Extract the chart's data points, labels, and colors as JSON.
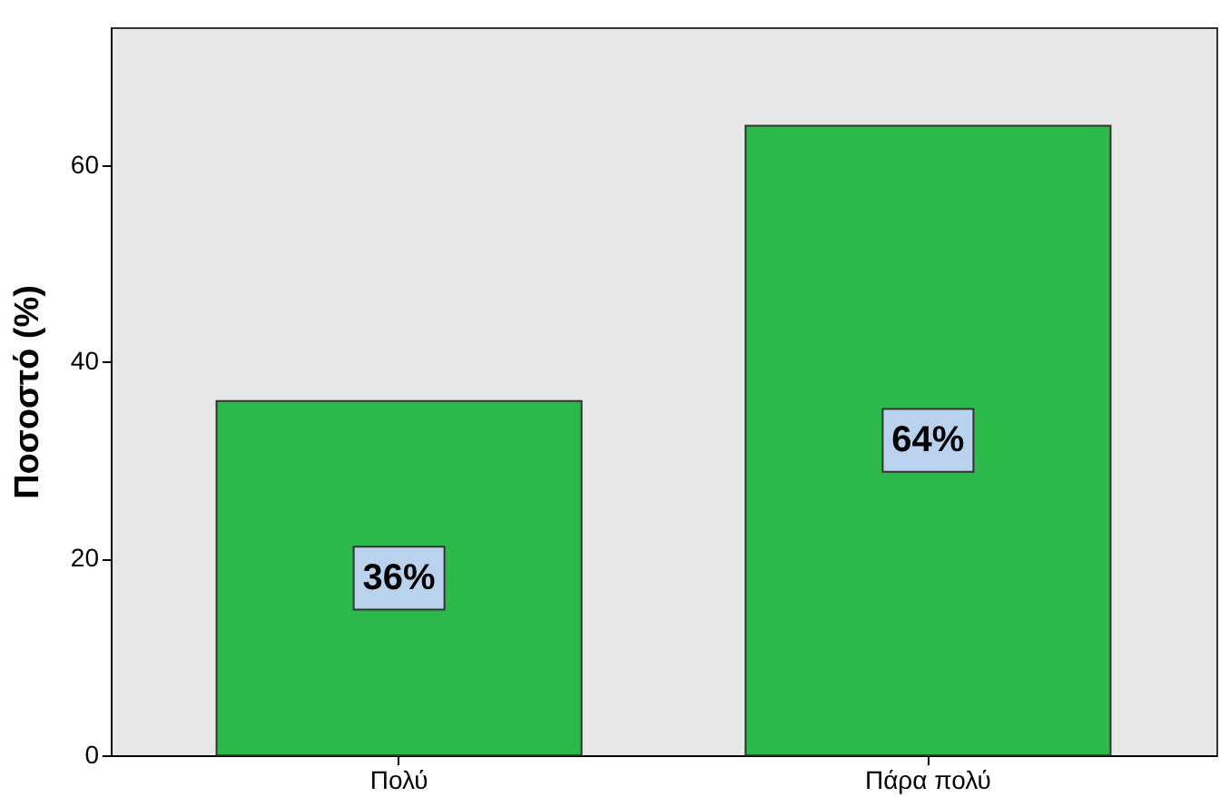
{
  "chart_data": {
    "type": "bar",
    "ylabel": "Ποσοστό (%)",
    "categories": [
      "Πολύ",
      "Πάρα πολύ"
    ],
    "values": [
      36,
      64
    ],
    "value_labels": [
      "36%",
      "64%"
    ],
    "color": "#2db84b",
    "ylim": [
      0,
      74
    ],
    "yticks": [
      0,
      20,
      40,
      60
    ],
    "grid": false
  }
}
